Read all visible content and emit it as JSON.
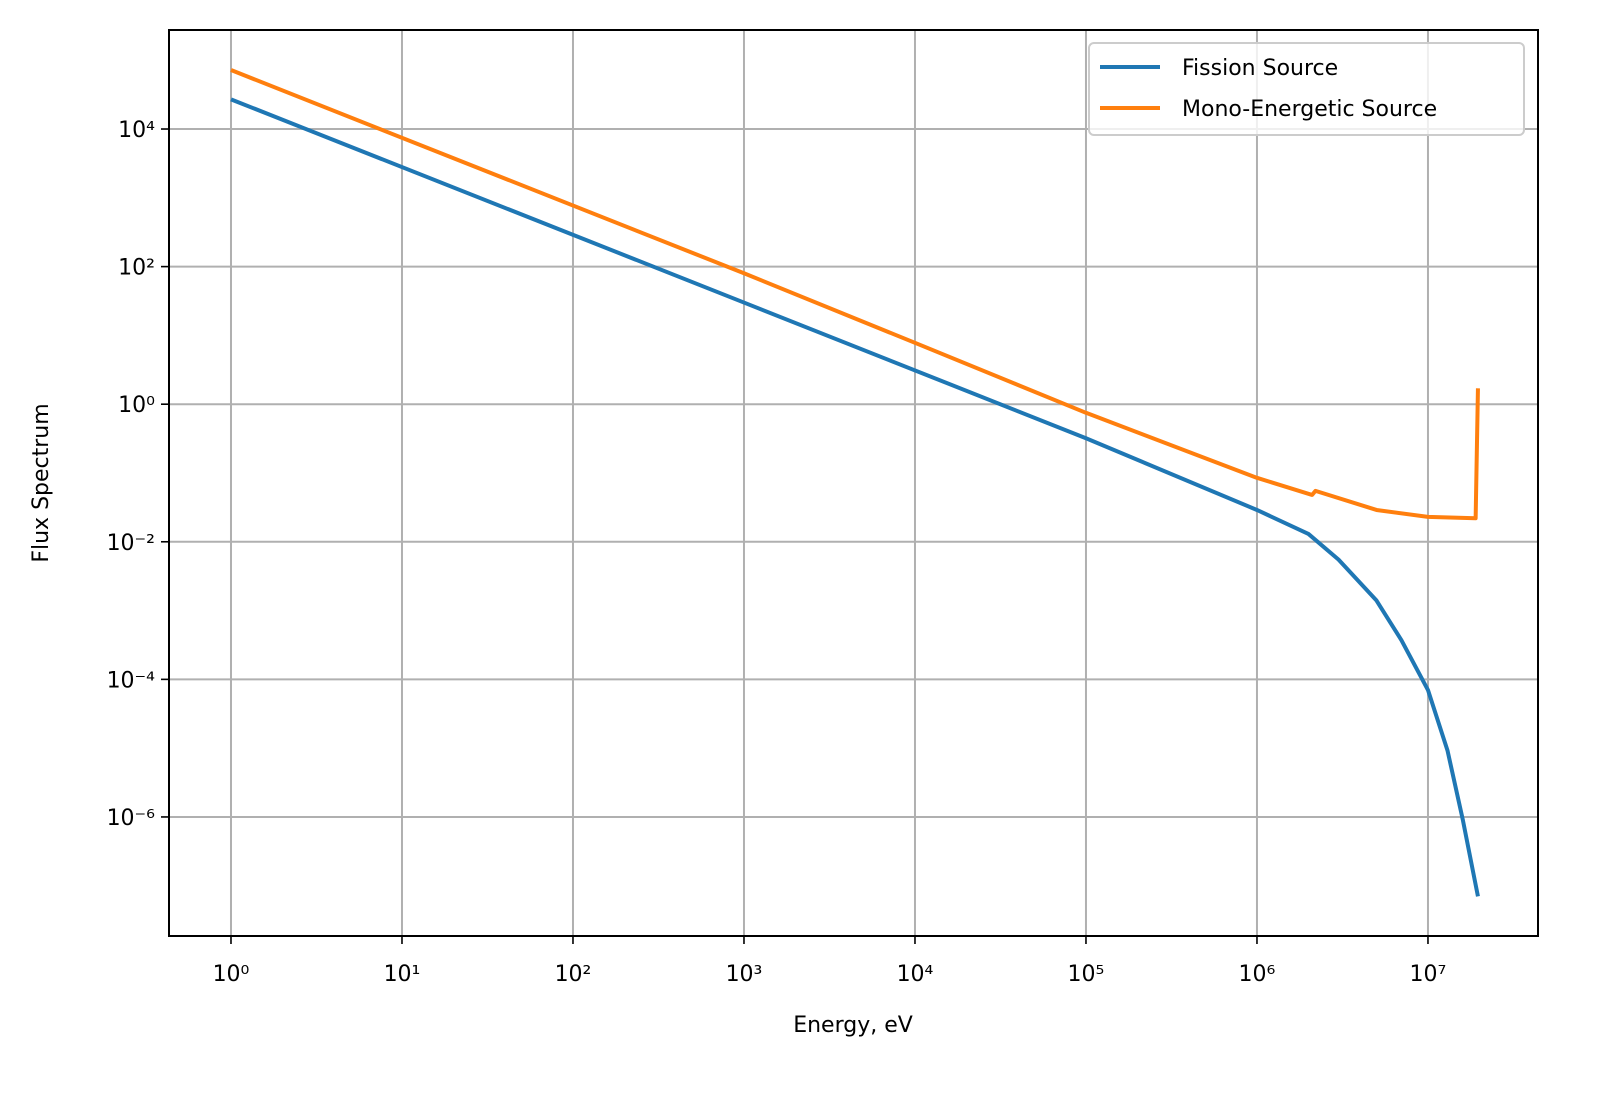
{
  "chart_data": {
    "type": "line",
    "xlabel": "Energy, eV",
    "ylabel": "Flux Spectrum",
    "xscale": "log",
    "yscale": "log",
    "grid": true,
    "legend": "upper right",
    "xlim": [
      0.434,
      44000000
    ],
    "ylim": [
      1.86e-08,
      275000
    ],
    "xticks": [
      {
        "value": 1,
        "label": "10⁰"
      },
      {
        "value": 10,
        "label": "10¹"
      },
      {
        "value": 100,
        "label": "10²"
      },
      {
        "value": 1000,
        "label": "10³"
      },
      {
        "value": 10000,
        "label": "10⁴"
      },
      {
        "value": 100000,
        "label": "10⁵"
      },
      {
        "value": 1000000,
        "label": "10⁶"
      },
      {
        "value": 10000000,
        "label": "10⁷"
      }
    ],
    "yticks": [
      {
        "value": 1e-06,
        "label": "10⁻⁶"
      },
      {
        "value": 0.0001,
        "label": "10⁻⁴"
      },
      {
        "value": 0.01,
        "label": "10⁻²"
      },
      {
        "value": 1,
        "label": "10⁰"
      },
      {
        "value": 100,
        "label": "10²"
      },
      {
        "value": 10000,
        "label": "10⁴"
      }
    ],
    "series": [
      {
        "name": "Fission Source",
        "color": "#1f77b4",
        "x": [
          1,
          1000,
          100000,
          1000000,
          2000000,
          3000000,
          5000000,
          7000000,
          10000000,
          13000000,
          16000000,
          19600000
        ],
        "values": [
          27000,
          30,
          0.32,
          0.029,
          0.013,
          0.0055,
          0.0014,
          0.00037,
          7e-05,
          9.3e-06,
          9e-07,
          7e-08
        ]
      },
      {
        "name": "Mono-Energetic Source",
        "color": "#ff7f0e",
        "x": [
          1,
          1000,
          10000,
          100000,
          1000000,
          2100000,
          2200000,
          5000000,
          10000000,
          19000000,
          19600000
        ],
        "values": [
          72000,
          80,
          7.8,
          0.75,
          0.085,
          0.048,
          0.055,
          0.029,
          0.023,
          0.022,
          1.7
        ]
      }
    ]
  }
}
